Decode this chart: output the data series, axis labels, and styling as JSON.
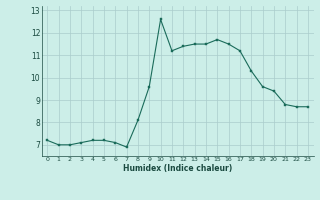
{
  "x": [
    0,
    1,
    2,
    3,
    4,
    5,
    6,
    7,
    8,
    9,
    10,
    11,
    12,
    13,
    14,
    15,
    16,
    17,
    18,
    19,
    20,
    21,
    22,
    23
  ],
  "y": [
    7.2,
    7.0,
    7.0,
    7.1,
    7.2,
    7.2,
    7.1,
    6.9,
    8.1,
    9.6,
    12.6,
    11.2,
    11.4,
    11.5,
    11.5,
    11.7,
    11.5,
    11.2,
    10.3,
    9.6,
    9.4,
    8.8,
    8.7,
    8.7
  ],
  "line_color": "#1a6b5a",
  "marker_color": "#1a6b5a",
  "bg_color": "#cceee8",
  "grid_color": "#c0ddd8",
  "xlabel": "Humidex (Indice chaleur)",
  "ylim": [
    6.5,
    13.2
  ],
  "xlim": [
    -0.5,
    23.5
  ],
  "yticks": [
    7,
    8,
    9,
    10,
    11,
    12,
    13
  ],
  "xticks": [
    0,
    1,
    2,
    3,
    4,
    5,
    6,
    7,
    8,
    9,
    10,
    11,
    12,
    13,
    14,
    15,
    16,
    17,
    18,
    19,
    20,
    21,
    22,
    23
  ]
}
